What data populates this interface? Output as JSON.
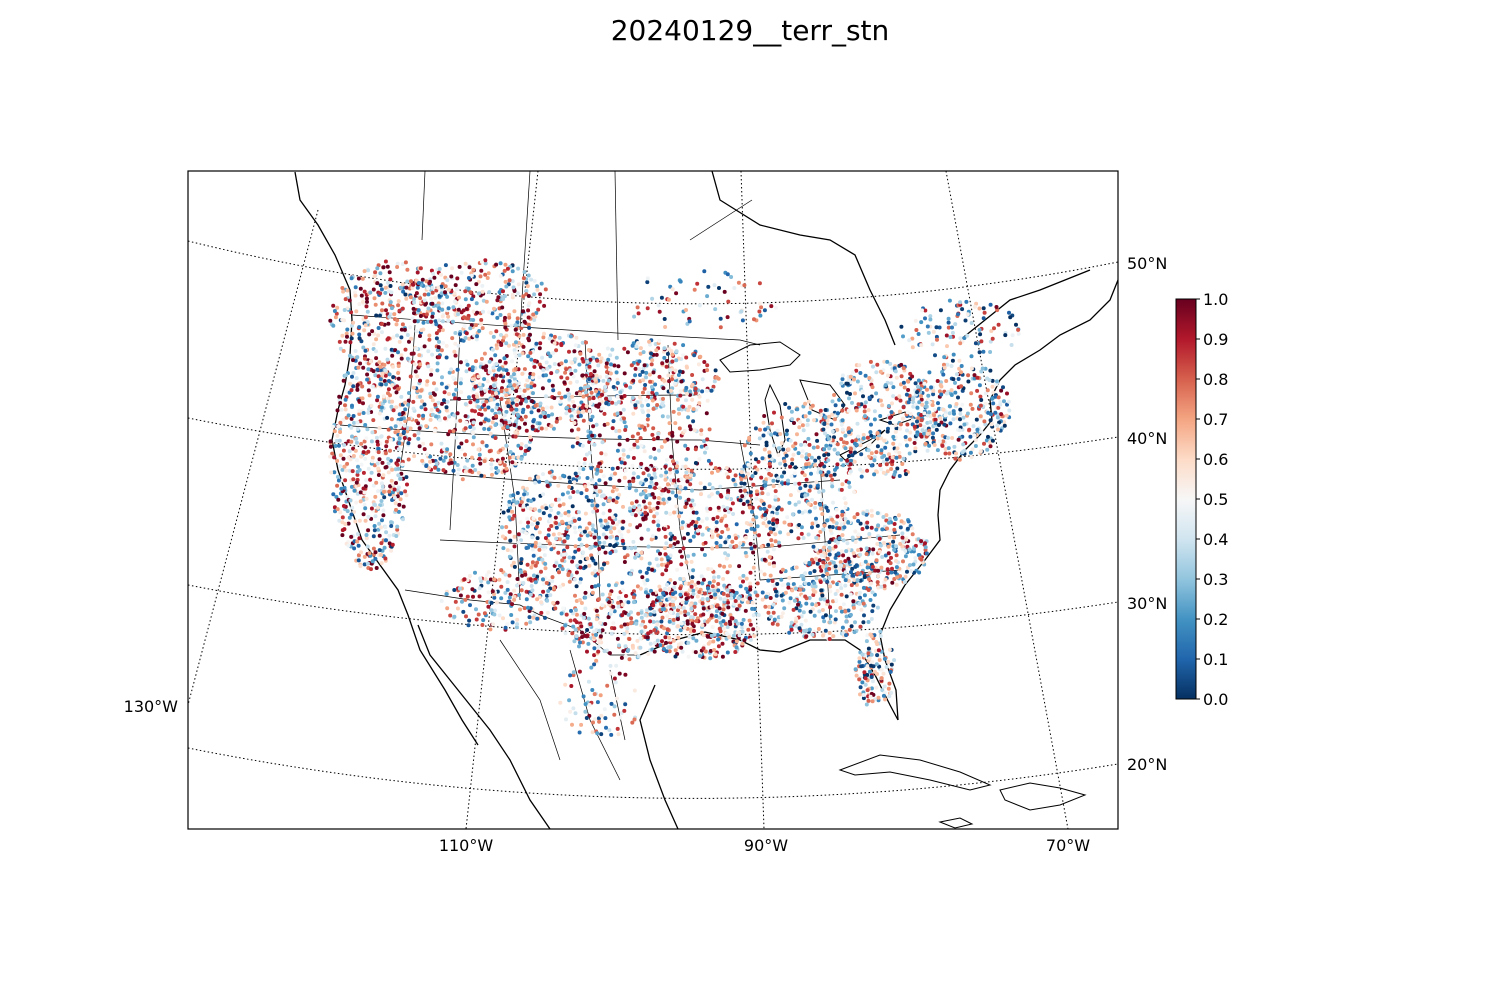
{
  "figure": {
    "title": "20240129__terr_stn"
  },
  "map": {
    "projection": "lambert-conformal",
    "region": "continental United States",
    "meridian_labels": [
      "130°W",
      "110°W",
      "90°W",
      "70°W"
    ],
    "parallel_labels": [
      "20°N",
      "30°N",
      "40°N",
      "50°N"
    ],
    "graticule_style": "dotted",
    "station_marker": "small filled circle"
  },
  "colorbar": {
    "colormap": "RdBu_r",
    "ticks": [
      "0.0",
      "0.1",
      "0.2",
      "0.3",
      "0.4",
      "0.5",
      "0.6",
      "0.7",
      "0.8",
      "0.9",
      "1.0"
    ],
    "range": [
      0.0,
      1.0
    ],
    "colors": {
      "low": "#053061",
      "mid": "#f7f7f7",
      "high": "#67001f"
    }
  }
}
